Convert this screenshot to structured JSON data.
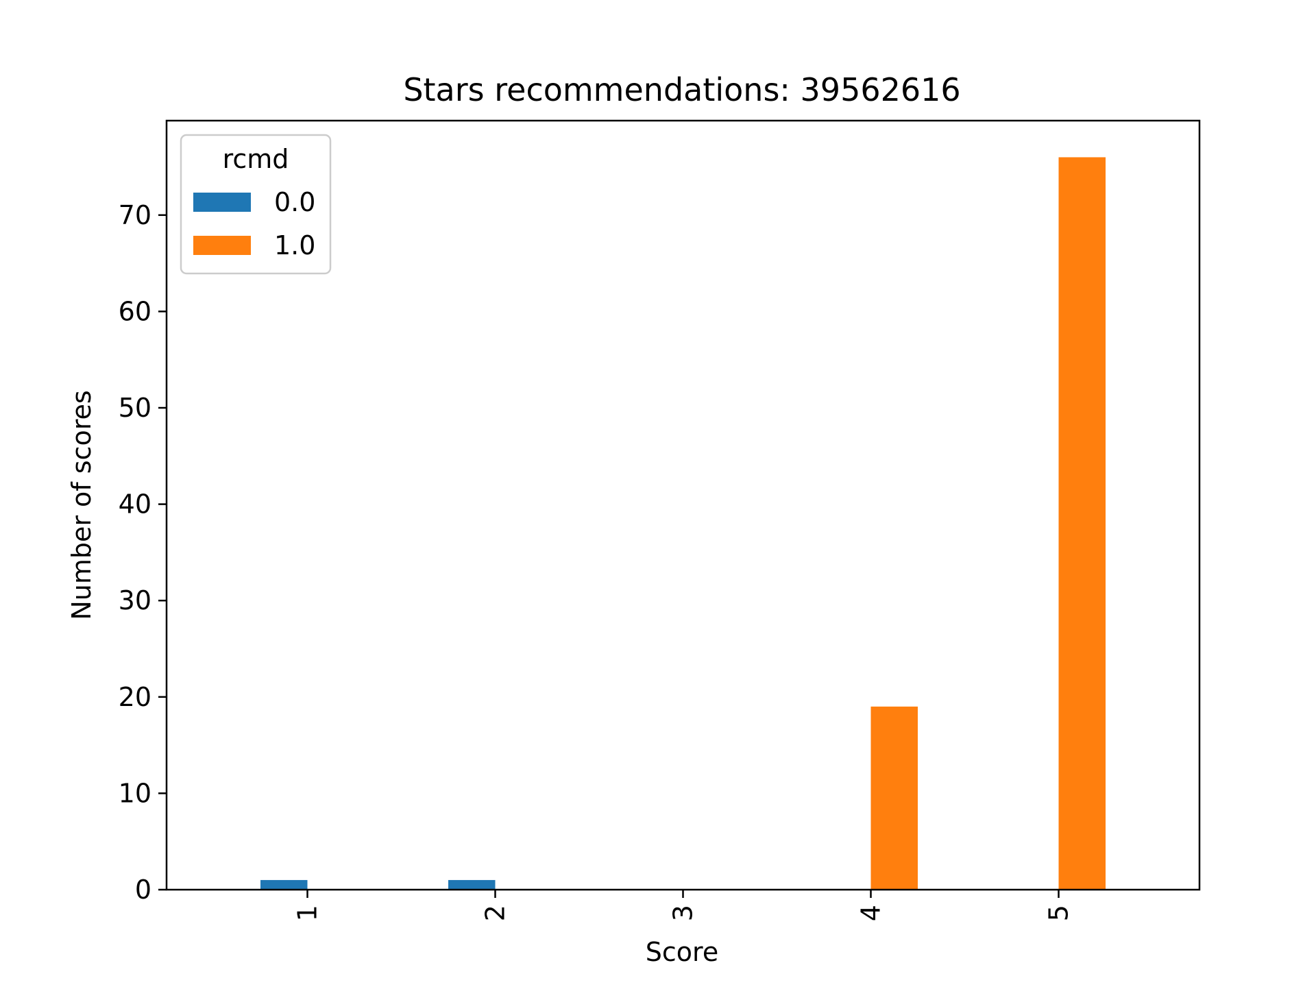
{
  "chart_data": {
    "type": "bar",
    "title": "Stars recommendations: 39562616",
    "xlabel": "Score",
    "ylabel": "Number of scores",
    "categories": [
      "1",
      "2",
      "3",
      "4",
      "5"
    ],
    "series": [
      {
        "name": "0.0",
        "color": "#1f77b4",
        "values": [
          1,
          1,
          0,
          0,
          0
        ]
      },
      {
        "name": "1.0",
        "color": "#ff7f0e",
        "values": [
          0,
          0,
          0,
          19,
          76
        ]
      }
    ],
    "ylim": [
      0,
      79.8
    ],
    "yticks": [
      0,
      10,
      20,
      30,
      40,
      50,
      60,
      70
    ],
    "legend": {
      "title": "rcmd",
      "placement": "top-left"
    },
    "grid": false
  }
}
